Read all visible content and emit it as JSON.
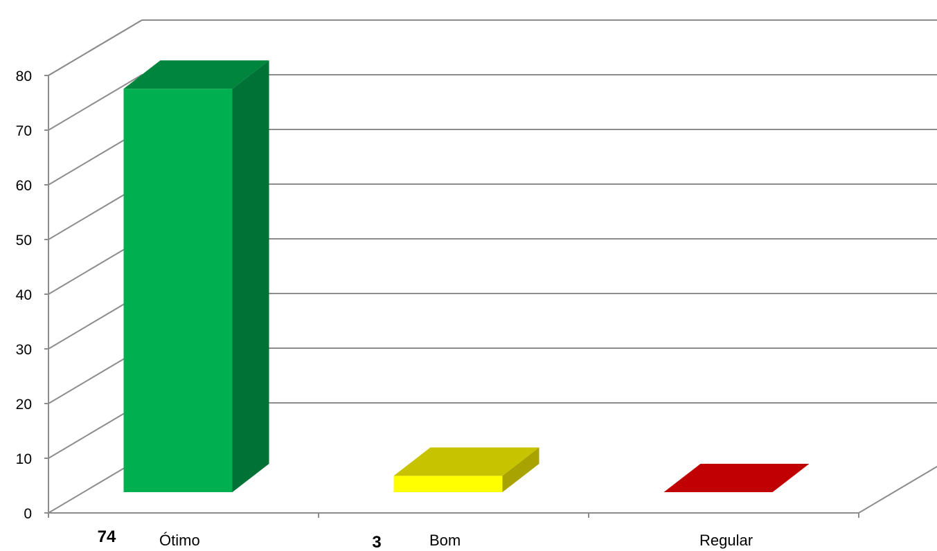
{
  "chart_data": {
    "type": "bar",
    "style": "3d-column",
    "categories": [
      "Ótimo",
      "Bom",
      "Regular"
    ],
    "values": [
      74,
      3,
      0
    ],
    "data_labels": [
      "74",
      "3",
      ""
    ],
    "colors": {
      "front": [
        "#00B050",
        "#FFFF00",
        "#FF0000"
      ],
      "top": [
        "#00853C",
        "#C8C300",
        "#C00000"
      ],
      "side": [
        "#007236",
        "#A8A300",
        "#A00000"
      ],
      "gridline": "#8C8C8C"
    },
    "ylim": [
      0,
      80
    ],
    "yticks": [
      0,
      10,
      20,
      30,
      40,
      50,
      60,
      70,
      80
    ],
    "title": "",
    "xlabel": "",
    "ylabel": "",
    "grid": true,
    "legend": "none"
  }
}
